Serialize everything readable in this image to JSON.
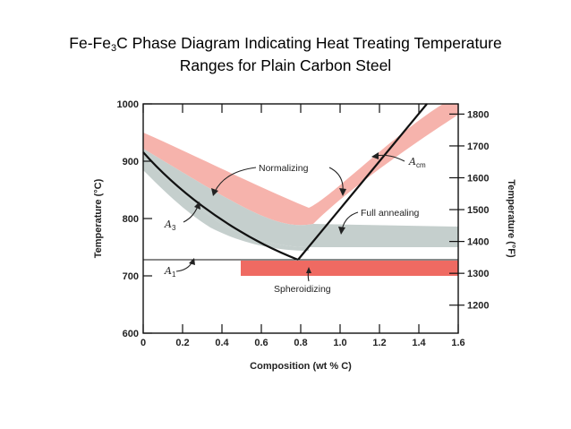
{
  "title": {
    "prefix": "Fe-Fe",
    "sub": "3",
    "suffix": "C  Phase Diagram Indicating Heat Treating Temperature",
    "line2": "Ranges for Plain Carbon Steel"
  },
  "diagram": {
    "x_axis": {
      "label": "Composition (wt % C)",
      "range": [
        0,
        1.6
      ],
      "ticks": [
        "0",
        "0.2",
        "0.4",
        "0.6",
        "0.8",
        "1.0",
        "1.2",
        "1.4",
        "1.6"
      ]
    },
    "y_left": {
      "label": "Temperature (°C)",
      "range": [
        600,
        1000
      ],
      "ticks": [
        "600",
        "700",
        "800",
        "900",
        "1000"
      ]
    },
    "y_right": {
      "label": "Temperature (°F)",
      "ticks": [
        "1200",
        "1300",
        "1400",
        "1500",
        "1600",
        "1700",
        "1800"
      ]
    },
    "labels": {
      "normalizing": "Normalizing",
      "full_annealing": "Full annealing",
      "spheroidizing": "Spheroidizing",
      "a3": "A",
      "a3_sub": "3",
      "a1": "A",
      "a1_sub": "1",
      "acm": "A",
      "acm_sub": "cm"
    },
    "colors": {
      "normalizing_band": "#f6b3ac",
      "full_annealing_band": "#c5cfcd",
      "spheroidizing_band": "#ef6a62",
      "phase_line": "#111111"
    }
  }
}
